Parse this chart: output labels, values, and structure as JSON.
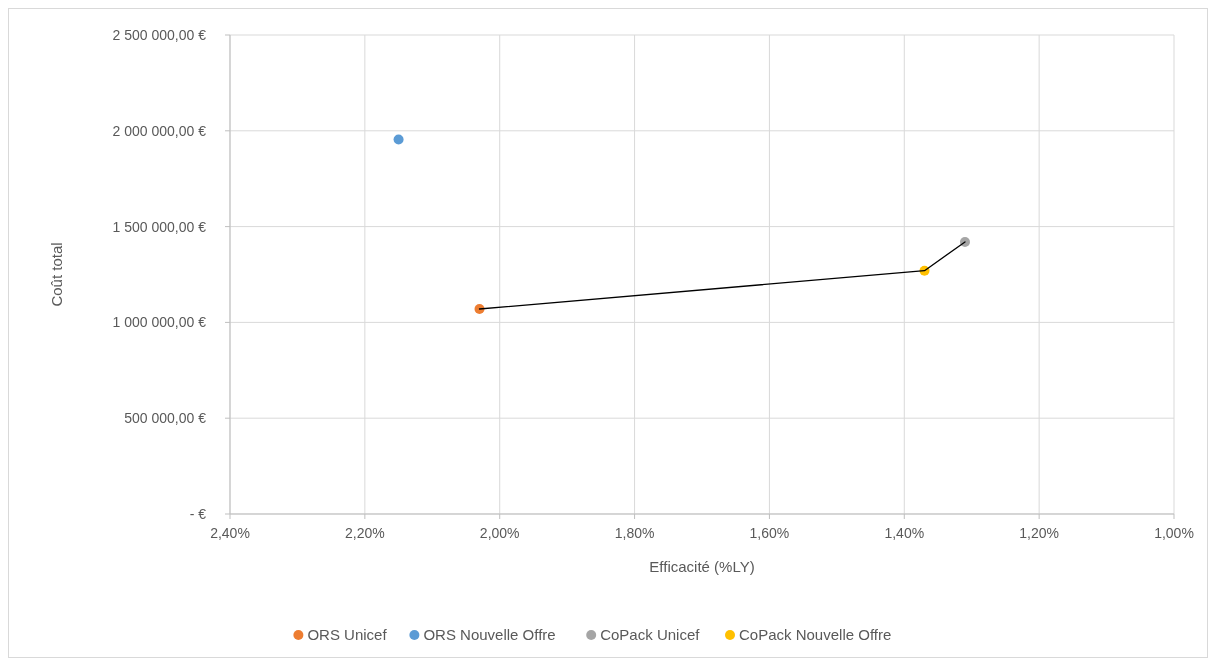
{
  "chart_data": {
    "type": "scatter",
    "xlabel": "Efficacité (%LY)",
    "ylabel": "Coût total",
    "xlim": [
      2.4,
      1.0
    ],
    "xticks": [
      {
        "value": 2.4,
        "label": "2,40%"
      },
      {
        "value": 2.2,
        "label": "2,20%"
      },
      {
        "value": 2.0,
        "label": "2,00%"
      },
      {
        "value": 1.8,
        "label": "1,80%"
      },
      {
        "value": 1.6,
        "label": "1,60%"
      },
      {
        "value": 1.4,
        "label": "1,40%"
      },
      {
        "value": 1.2,
        "label": "1,20%"
      },
      {
        "value": 1.0,
        "label": "1,00%"
      }
    ],
    "ylim": [
      0,
      2500000
    ],
    "yticks": [
      {
        "value": 0,
        "label": "-   €"
      },
      {
        "value": 500000,
        "label": "500 000,00 €"
      },
      {
        "value": 1000000,
        "label": "1 000 000,00 €"
      },
      {
        "value": 1500000,
        "label": "1 500 000,00 €"
      },
      {
        "value": 2000000,
        "label": "2 000 000,00 €"
      },
      {
        "value": 2500000,
        "label": "2 500 000,00 €"
      }
    ],
    "grid": true,
    "legend": "bottom",
    "marker": "circle",
    "series": [
      {
        "type": "line",
        "color": "#000000",
        "x": [
          2.03,
          1.37,
          1.31
        ],
        "values": [
          1070000,
          1270000,
          1420000
        ],
        "marker": "none"
      },
      {
        "name": "ORS Unicef",
        "color": "#ed7d31",
        "x": [
          2.03
        ],
        "values": [
          1070000
        ]
      },
      {
        "name": "ORS Nouvelle Offre",
        "color": "#5b9bd5",
        "x": [
          2.15
        ],
        "values": [
          1955000
        ]
      },
      {
        "name": "CoPack Unicef",
        "color": "#a5a5a5",
        "x": [
          1.31
        ],
        "values": [
          1420000
        ]
      },
      {
        "name": "CoPack Nouvelle Offre",
        "color": "#ffc000",
        "x": [
          1.37
        ],
        "values": [
          1270000
        ]
      }
    ]
  }
}
